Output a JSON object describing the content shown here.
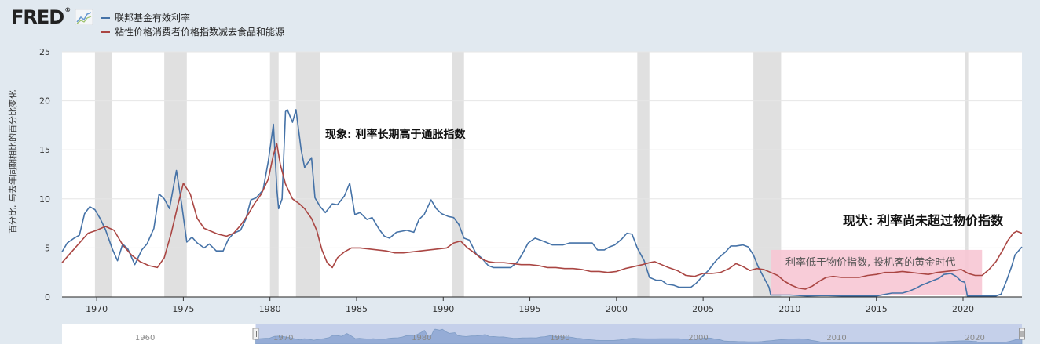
{
  "header": {
    "logo_text": "FRED",
    "logo_mark": "®"
  },
  "legend": [
    {
      "label": "联邦基金有效利率",
      "color": "#4572a7"
    },
    {
      "label": "粘性价格消费者价格指数减去食品和能源",
      "color": "#aa4643"
    }
  ],
  "icons": {
    "logo": "fred-logo-graph-icon",
    "navigator_handle_left": "grip-icon",
    "navigator_handle_right": "grip-icon"
  },
  "annotations": {
    "phenomenon": "现象: 利率长期高于通胀指数",
    "current": "现状: 利率尚未超过物价指数",
    "golden_age": "利率低于物价指数, 投机客的黄金时代"
  },
  "colors": {
    "recession": "#e0e0e0",
    "highlight": "#f7c6d4",
    "navigator": "#bfcbe8"
  },
  "chart_data": {
    "type": "line",
    "ylabel": "百分比, 与去年同期相比的百分比变化",
    "xlim": [
      1968.0,
      2023.4
    ],
    "ylim": [
      0,
      25
    ],
    "yticks": [
      0,
      5,
      10,
      15,
      20,
      25
    ],
    "xticks": [
      1970,
      1975,
      1980,
      1985,
      1990,
      1995,
      2000,
      2005,
      2010,
      2015,
      2020
    ],
    "navigator_ticks": [
      1960,
      1970,
      1980,
      1990,
      2000,
      2010,
      2020
    ],
    "recessions": [
      [
        1969.9,
        1970.9
      ],
      [
        1973.9,
        1975.2
      ],
      [
        1980.0,
        1980.5
      ],
      [
        1981.5,
        1982.9
      ],
      [
        1990.5,
        1991.2
      ],
      [
        2001.2,
        2001.9
      ],
      [
        2007.9,
        2009.5
      ],
      [
        2020.1,
        2020.3
      ]
    ],
    "highlight": {
      "x": [
        2008.9,
        2021.1
      ],
      "y": [
        0.2,
        4.8
      ]
    },
    "series": [
      {
        "name": "联邦基金有效利率",
        "color": "#4572a7",
        "points": [
          [
            1968.0,
            4.6
          ],
          [
            1968.3,
            5.5
          ],
          [
            1968.7,
            6.0
          ],
          [
            1969.0,
            6.3
          ],
          [
            1969.3,
            8.5
          ],
          [
            1969.6,
            9.2
          ],
          [
            1969.9,
            8.9
          ],
          [
            1970.2,
            8.0
          ],
          [
            1970.5,
            6.9
          ],
          [
            1970.9,
            4.9
          ],
          [
            1971.2,
            3.7
          ],
          [
            1971.5,
            5.4
          ],
          [
            1971.8,
            4.9
          ],
          [
            1972.2,
            3.3
          ],
          [
            1972.6,
            4.8
          ],
          [
            1972.9,
            5.4
          ],
          [
            1973.3,
            7.0
          ],
          [
            1973.6,
            10.5
          ],
          [
            1973.9,
            10.0
          ],
          [
            1974.2,
            9.0
          ],
          [
            1974.6,
            12.9
          ],
          [
            1974.9,
            9.5
          ],
          [
            1975.2,
            5.6
          ],
          [
            1975.5,
            6.1
          ],
          [
            1975.8,
            5.5
          ],
          [
            1976.2,
            5.0
          ],
          [
            1976.5,
            5.4
          ],
          [
            1976.9,
            4.7
          ],
          [
            1977.3,
            4.7
          ],
          [
            1977.6,
            5.9
          ],
          [
            1977.9,
            6.5
          ],
          [
            1978.3,
            6.8
          ],
          [
            1978.6,
            7.9
          ],
          [
            1978.9,
            9.9
          ],
          [
            1979.2,
            10.1
          ],
          [
            1979.6,
            10.9
          ],
          [
            1979.9,
            13.8
          ],
          [
            1980.2,
            17.6
          ],
          [
            1980.4,
            11.0
          ],
          [
            1980.5,
            9.0
          ],
          [
            1980.7,
            10.0
          ],
          [
            1980.9,
            18.9
          ],
          [
            1981.0,
            19.1
          ],
          [
            1981.3,
            17.8
          ],
          [
            1981.5,
            19.1
          ],
          [
            1981.8,
            15.0
          ],
          [
            1982.0,
            13.2
          ],
          [
            1982.4,
            14.2
          ],
          [
            1982.6,
            10.1
          ],
          [
            1982.9,
            9.2
          ],
          [
            1983.2,
            8.6
          ],
          [
            1983.6,
            9.5
          ],
          [
            1983.9,
            9.4
          ],
          [
            1984.3,
            10.3
          ],
          [
            1984.6,
            11.6
          ],
          [
            1984.9,
            8.4
          ],
          [
            1985.2,
            8.6
          ],
          [
            1985.6,
            7.9
          ],
          [
            1985.9,
            8.1
          ],
          [
            1986.3,
            6.9
          ],
          [
            1986.6,
            6.2
          ],
          [
            1986.9,
            6.0
          ],
          [
            1987.3,
            6.6
          ],
          [
            1987.6,
            6.7
          ],
          [
            1987.9,
            6.8
          ],
          [
            1988.3,
            6.6
          ],
          [
            1988.6,
            7.9
          ],
          [
            1988.9,
            8.4
          ],
          [
            1989.3,
            9.9
          ],
          [
            1989.6,
            9.0
          ],
          [
            1989.9,
            8.5
          ],
          [
            1990.3,
            8.2
          ],
          [
            1990.6,
            8.1
          ],
          [
            1990.9,
            7.4
          ],
          [
            1991.2,
            6.0
          ],
          [
            1991.5,
            5.8
          ],
          [
            1991.9,
            4.4
          ],
          [
            1992.2,
            4.0
          ],
          [
            1992.6,
            3.2
          ],
          [
            1992.9,
            3.0
          ],
          [
            1993.3,
            3.0
          ],
          [
            1993.6,
            3.0
          ],
          [
            1993.9,
            3.0
          ],
          [
            1994.3,
            3.6
          ],
          [
            1994.6,
            4.5
          ],
          [
            1994.9,
            5.5
          ],
          [
            1995.3,
            6.0
          ],
          [
            1995.6,
            5.8
          ],
          [
            1995.9,
            5.6
          ],
          [
            1996.3,
            5.3
          ],
          [
            1996.6,
            5.3
          ],
          [
            1996.9,
            5.3
          ],
          [
            1997.3,
            5.5
          ],
          [
            1997.6,
            5.5
          ],
          [
            1997.9,
            5.5
          ],
          [
            1998.3,
            5.5
          ],
          [
            1998.6,
            5.5
          ],
          [
            1998.9,
            4.8
          ],
          [
            1999.3,
            4.8
          ],
          [
            1999.6,
            5.1
          ],
          [
            1999.9,
            5.3
          ],
          [
            2000.3,
            5.9
          ],
          [
            2000.6,
            6.5
          ],
          [
            2000.9,
            6.4
          ],
          [
            2001.2,
            5.0
          ],
          [
            2001.6,
            3.7
          ],
          [
            2001.9,
            2.0
          ],
          [
            2002.3,
            1.7
          ],
          [
            2002.6,
            1.7
          ],
          [
            2002.9,
            1.3
          ],
          [
            2003.3,
            1.2
          ],
          [
            2003.6,
            1.0
          ],
          [
            2003.9,
            1.0
          ],
          [
            2004.3,
            1.0
          ],
          [
            2004.6,
            1.4
          ],
          [
            2004.9,
            2.0
          ],
          [
            2005.3,
            2.7
          ],
          [
            2005.6,
            3.4
          ],
          [
            2005.9,
            4.0
          ],
          [
            2006.3,
            4.6
          ],
          [
            2006.6,
            5.2
          ],
          [
            2006.9,
            5.2
          ],
          [
            2007.3,
            5.3
          ],
          [
            2007.6,
            5.1
          ],
          [
            2007.9,
            4.3
          ],
          [
            2008.2,
            3.0
          ],
          [
            2008.5,
            2.0
          ],
          [
            2008.8,
            1.0
          ],
          [
            2008.9,
            0.2
          ],
          [
            2009.3,
            0.2
          ],
          [
            2010.0,
            0.2
          ],
          [
            2011.0,
            0.1
          ],
          [
            2012.0,
            0.15
          ],
          [
            2013.0,
            0.1
          ],
          [
            2014.0,
            0.1
          ],
          [
            2015.0,
            0.1
          ],
          [
            2015.9,
            0.4
          ],
          [
            2016.5,
            0.4
          ],
          [
            2016.9,
            0.6
          ],
          [
            2017.3,
            0.9
          ],
          [
            2017.6,
            1.2
          ],
          [
            2017.9,
            1.4
          ],
          [
            2018.3,
            1.7
          ],
          [
            2018.6,
            1.9
          ],
          [
            2018.9,
            2.3
          ],
          [
            2019.3,
            2.4
          ],
          [
            2019.6,
            2.1
          ],
          [
            2019.9,
            1.6
          ],
          [
            2020.1,
            1.5
          ],
          [
            2020.25,
            0.1
          ],
          [
            2021.0,
            0.1
          ],
          [
            2021.9,
            0.1
          ],
          [
            2022.2,
            0.3
          ],
          [
            2022.5,
            1.6
          ],
          [
            2022.8,
            3.1
          ],
          [
            2023.0,
            4.3
          ],
          [
            2023.4,
            5.1
          ]
        ]
      },
      {
        "name": "粘性价格消费者价格指数减去食品和能源",
        "color": "#aa4643",
        "points": [
          [
            1968.0,
            3.5
          ],
          [
            1968.5,
            4.5
          ],
          [
            1969.0,
            5.5
          ],
          [
            1969.5,
            6.5
          ],
          [
            1970.0,
            6.8
          ],
          [
            1970.5,
            7.2
          ],
          [
            1971.0,
            6.8
          ],
          [
            1971.5,
            5.3
          ],
          [
            1972.0,
            4.3
          ],
          [
            1972.5,
            3.6
          ],
          [
            1973.0,
            3.2
          ],
          [
            1973.5,
            3.0
          ],
          [
            1973.9,
            4.0
          ],
          [
            1974.3,
            6.5
          ],
          [
            1974.7,
            9.5
          ],
          [
            1975.0,
            11.6
          ],
          [
            1975.4,
            10.5
          ],
          [
            1975.8,
            8.0
          ],
          [
            1976.2,
            7.0
          ],
          [
            1976.6,
            6.7
          ],
          [
            1977.0,
            6.4
          ],
          [
            1977.5,
            6.2
          ],
          [
            1977.9,
            6.5
          ],
          [
            1978.3,
            7.3
          ],
          [
            1978.7,
            8.3
          ],
          [
            1979.1,
            9.5
          ],
          [
            1979.5,
            10.5
          ],
          [
            1979.9,
            12.0
          ],
          [
            1980.2,
            14.5
          ],
          [
            1980.4,
            15.6
          ],
          [
            1980.6,
            13.5
          ],
          [
            1980.9,
            11.5
          ],
          [
            1981.3,
            10.0
          ],
          [
            1981.7,
            9.5
          ],
          [
            1982.0,
            9.0
          ],
          [
            1982.4,
            8.0
          ],
          [
            1982.7,
            6.8
          ],
          [
            1983.0,
            4.8
          ],
          [
            1983.3,
            3.5
          ],
          [
            1983.6,
            3.0
          ],
          [
            1983.9,
            4.0
          ],
          [
            1984.3,
            4.6
          ],
          [
            1984.7,
            5.0
          ],
          [
            1985.2,
            5.0
          ],
          [
            1985.7,
            4.9
          ],
          [
            1986.2,
            4.8
          ],
          [
            1986.7,
            4.7
          ],
          [
            1987.2,
            4.5
          ],
          [
            1987.7,
            4.5
          ],
          [
            1988.2,
            4.6
          ],
          [
            1988.7,
            4.7
          ],
          [
            1989.2,
            4.8
          ],
          [
            1989.7,
            4.9
          ],
          [
            1990.2,
            5.0
          ],
          [
            1990.6,
            5.5
          ],
          [
            1991.0,
            5.7
          ],
          [
            1991.4,
            5.0
          ],
          [
            1991.8,
            4.5
          ],
          [
            1992.2,
            3.9
          ],
          [
            1992.6,
            3.6
          ],
          [
            1993.0,
            3.5
          ],
          [
            1993.5,
            3.5
          ],
          [
            1994.0,
            3.4
          ],
          [
            1994.5,
            3.3
          ],
          [
            1995.0,
            3.3
          ],
          [
            1995.5,
            3.2
          ],
          [
            1996.0,
            3.0
          ],
          [
            1996.5,
            3.0
          ],
          [
            1997.0,
            2.9
          ],
          [
            1997.5,
            2.9
          ],
          [
            1998.0,
            2.8
          ],
          [
            1998.5,
            2.6
          ],
          [
            1999.0,
            2.6
          ],
          [
            1999.5,
            2.5
          ],
          [
            2000.0,
            2.6
          ],
          [
            2000.5,
            2.9
          ],
          [
            2001.0,
            3.1
          ],
          [
            2001.5,
            3.3
          ],
          [
            2001.9,
            3.5
          ],
          [
            2002.2,
            3.6
          ],
          [
            2002.6,
            3.3
          ],
          [
            2003.0,
            3.0
          ],
          [
            2003.5,
            2.7
          ],
          [
            2004.0,
            2.2
          ],
          [
            2004.5,
            2.1
          ],
          [
            2005.0,
            2.4
          ],
          [
            2005.5,
            2.4
          ],
          [
            2006.0,
            2.5
          ],
          [
            2006.5,
            2.9
          ],
          [
            2006.9,
            3.4
          ],
          [
            2007.3,
            3.1
          ],
          [
            2007.7,
            2.7
          ],
          [
            2008.1,
            2.9
          ],
          [
            2008.5,
            2.8
          ],
          [
            2008.9,
            2.5
          ],
          [
            2009.3,
            2.2
          ],
          [
            2009.7,
            1.6
          ],
          [
            2010.1,
            1.2
          ],
          [
            2010.5,
            0.9
          ],
          [
            2010.9,
            0.8
          ],
          [
            2011.3,
            1.1
          ],
          [
            2011.7,
            1.6
          ],
          [
            2012.1,
            2.0
          ],
          [
            2012.5,
            2.1
          ],
          [
            2013.0,
            2.0
          ],
          [
            2013.5,
            2.0
          ],
          [
            2014.0,
            2.0
          ],
          [
            2014.5,
            2.2
          ],
          [
            2015.0,
            2.3
          ],
          [
            2015.5,
            2.5
          ],
          [
            2016.0,
            2.5
          ],
          [
            2016.5,
            2.6
          ],
          [
            2017.0,
            2.5
          ],
          [
            2017.5,
            2.4
          ],
          [
            2018.0,
            2.3
          ],
          [
            2018.5,
            2.5
          ],
          [
            2019.0,
            2.6
          ],
          [
            2019.5,
            2.7
          ],
          [
            2019.9,
            2.8
          ],
          [
            2020.3,
            2.4
          ],
          [
            2020.7,
            2.2
          ],
          [
            2021.1,
            2.2
          ],
          [
            2021.5,
            2.8
          ],
          [
            2021.9,
            3.6
          ],
          [
            2022.3,
            4.8
          ],
          [
            2022.6,
            5.8
          ],
          [
            2022.9,
            6.5
          ],
          [
            2023.1,
            6.7
          ],
          [
            2023.4,
            6.5
          ]
        ]
      }
    ]
  }
}
